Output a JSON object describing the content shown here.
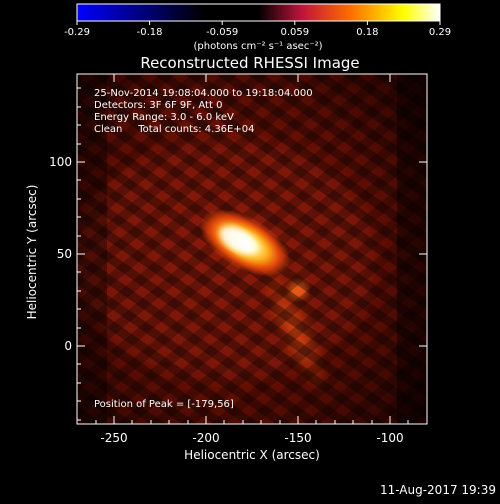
{
  "colorbar": {
    "ticks": [
      "-0.29",
      "-0.18",
      "-0.059",
      "0.059",
      "0.18",
      "0.29"
    ],
    "unit_label": "(photons cm⁻² s⁻¹ asec⁻²)",
    "colors": [
      "#0000ff",
      "#000000",
      "#c0143c",
      "#ff6a00",
      "#ffff00",
      "#ffffff"
    ]
  },
  "title": "Reconstructed RHESSI Image",
  "info_lines": [
    "25-Nov-2014 19:08:04.000 to 19:18:04.000",
    "Detectors: 3F 6F 9F, Att 0",
    "Energy Range: 3.0 - 6.0 keV",
    "Clean     Total counts: 4.36E+04"
  ],
  "peak_label": "Position of Peak = [-179,56]",
  "axes": {
    "xlabel": "Heliocentric X (arcsec)",
    "ylabel": "Heliocentric Y (arcsec)",
    "xticks": [
      "-250",
      "-200",
      "-150",
      "-100"
    ],
    "yticks": [
      "100",
      "50",
      "0"
    ]
  },
  "footer_timestamp": "11-Aug-2017 19:39"
}
